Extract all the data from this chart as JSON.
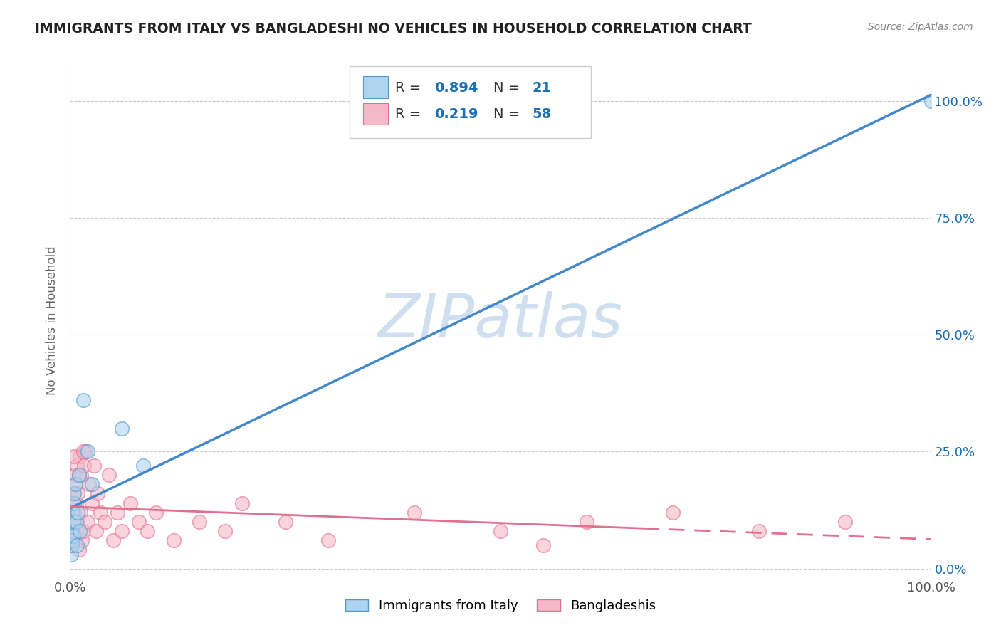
{
  "title": "IMMIGRANTS FROM ITALY VS BANGLADESHI NO VEHICLES IN HOUSEHOLD CORRELATION CHART",
  "source_text": "Source: ZipAtlas.com",
  "ylabel": "No Vehicles in Household",
  "legend_labels": [
    "Immigrants from Italy",
    "Bangladeshis"
  ],
  "r_italy": 0.894,
  "n_italy": 21,
  "r_bang": 0.219,
  "n_bang": 58,
  "blue_face_color": "#aed4f0",
  "blue_edge_color": "#5599cc",
  "pink_face_color": "#f5b8c8",
  "pink_edge_color": "#e07090",
  "blue_line_color": "#4488cc",
  "pink_line_color": "#e07090",
  "title_color": "#222222",
  "source_color": "#888888",
  "label_color": "#1a6fb5",
  "background_color": "#ffffff",
  "grid_color": "#cccccc",
  "watermark_color": "#d0dff0",
  "italy_x": [
    0.001,
    0.002,
    0.002,
    0.003,
    0.003,
    0.004,
    0.004,
    0.005,
    0.005,
    0.006,
    0.007,
    0.008,
    0.009,
    0.01,
    0.011,
    0.015,
    0.02,
    0.025,
    0.06,
    0.085,
    1.0
  ],
  "italy_y": [
    0.03,
    0.05,
    0.08,
    0.12,
    0.06,
    0.1,
    0.07,
    0.14,
    0.16,
    0.18,
    0.1,
    0.05,
    0.12,
    0.2,
    0.08,
    0.36,
    0.25,
    0.18,
    0.3,
    0.22,
    1.0
  ],
  "bang_x": [
    0.001,
    0.001,
    0.002,
    0.002,
    0.003,
    0.003,
    0.003,
    0.004,
    0.004,
    0.005,
    0.005,
    0.006,
    0.006,
    0.007,
    0.007,
    0.008,
    0.008,
    0.009,
    0.01,
    0.01,
    0.011,
    0.012,
    0.013,
    0.014,
    0.015,
    0.016,
    0.018,
    0.02,
    0.022,
    0.025,
    0.028,
    0.03,
    0.032,
    0.035,
    0.04,
    0.045,
    0.05,
    0.055,
    0.06,
    0.07,
    0.08,
    0.09,
    0.1,
    0.12,
    0.15,
    0.18,
    0.2,
    0.25,
    0.3,
    0.4,
    0.5,
    0.6,
    0.7,
    0.8,
    0.9,
    0.005,
    0.015,
    0.55
  ],
  "bang_y": [
    0.05,
    0.08,
    0.06,
    0.12,
    0.1,
    0.14,
    0.06,
    0.08,
    0.16,
    0.12,
    0.2,
    0.06,
    0.18,
    0.08,
    0.14,
    0.1,
    0.22,
    0.16,
    0.04,
    0.2,
    0.24,
    0.12,
    0.2,
    0.06,
    0.08,
    0.22,
    0.25,
    0.1,
    0.18,
    0.14,
    0.22,
    0.08,
    0.16,
    0.12,
    0.1,
    0.2,
    0.06,
    0.12,
    0.08,
    0.14,
    0.1,
    0.08,
    0.12,
    0.06,
    0.1,
    0.08,
    0.14,
    0.1,
    0.06,
    0.12,
    0.08,
    0.1,
    0.12,
    0.08,
    0.1,
    0.24,
    0.25,
    0.05
  ],
  "xlim": [
    0.0,
    1.0
  ],
  "ylim": [
    -0.02,
    1.08
  ],
  "ytick_positions": [
    0.0,
    0.25,
    0.5,
    0.75,
    1.0
  ],
  "right_ytick_labels": [
    "0.0%",
    "25.0%",
    "50.0%",
    "75.0%",
    "100.0%"
  ],
  "xtick_positions": [
    0.0,
    1.0
  ],
  "xtick_labels": [
    "0.0%",
    "100.0%"
  ]
}
